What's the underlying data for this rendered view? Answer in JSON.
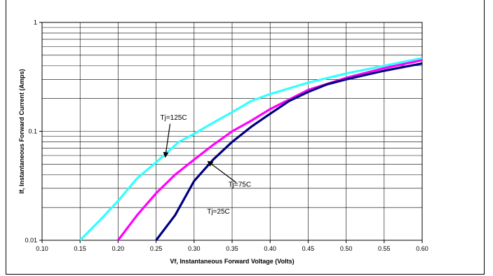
{
  "chart_data": {
    "type": "line",
    "xlabel": "Vf, Instantaneous Forward  Voltage (Volts)",
    "ylabel": "If, Instantaneous Forward Current (Amps)",
    "xlim": [
      0.1,
      0.6
    ],
    "ylim": [
      0.01,
      1
    ],
    "yscale": "log",
    "grid": true,
    "x_ticks": [
      "0.10",
      "0.15",
      "0.20",
      "0.25",
      "0.30",
      "0.35",
      "0.40",
      "0.45",
      "0.50",
      "0.55",
      "0.60"
    ],
    "y_ticks": [
      "0.01",
      "0.1",
      "1"
    ],
    "series": [
      {
        "name": "Tj=125C",
        "color": "#33ffff",
        "points": [
          [
            0.15,
            0.01
          ],
          [
            0.175,
            0.015
          ],
          [
            0.2,
            0.023
          ],
          [
            0.225,
            0.037
          ],
          [
            0.25,
            0.052
          ],
          [
            0.28,
            0.08
          ],
          [
            0.3,
            0.095
          ],
          [
            0.325,
            0.12
          ],
          [
            0.35,
            0.15
          ],
          [
            0.375,
            0.19
          ],
          [
            0.4,
            0.22
          ],
          [
            0.45,
            0.28
          ],
          [
            0.5,
            0.34
          ],
          [
            0.55,
            0.4
          ],
          [
            0.6,
            0.47
          ]
        ]
      },
      {
        "name": "Tj=75C",
        "color": "#ff00ff",
        "points": [
          [
            0.2,
            0.01
          ],
          [
            0.225,
            0.017
          ],
          [
            0.25,
            0.027
          ],
          [
            0.275,
            0.04
          ],
          [
            0.3,
            0.055
          ],
          [
            0.325,
            0.075
          ],
          [
            0.35,
            0.1
          ],
          [
            0.375,
            0.125
          ],
          [
            0.4,
            0.16
          ],
          [
            0.45,
            0.24
          ],
          [
            0.5,
            0.31
          ],
          [
            0.55,
            0.38
          ],
          [
            0.6,
            0.45
          ]
        ]
      },
      {
        "name": "Tj=25C",
        "color": "#000080",
        "points": [
          [
            0.25,
            0.01
          ],
          [
            0.275,
            0.017
          ],
          [
            0.3,
            0.035
          ],
          [
            0.325,
            0.055
          ],
          [
            0.35,
            0.08
          ],
          [
            0.375,
            0.11
          ],
          [
            0.4,
            0.145
          ],
          [
            0.425,
            0.19
          ],
          [
            0.45,
            0.23
          ],
          [
            0.475,
            0.27
          ],
          [
            0.5,
            0.3
          ],
          [
            0.55,
            0.36
          ],
          [
            0.6,
            0.42
          ]
        ]
      }
    ],
    "annotations": [
      {
        "text": "Tj=125C",
        "series": "Tj=125C",
        "label_at": [
          0.273,
          0.128
        ],
        "arrow_to": [
          0.262,
          0.058
        ]
      },
      {
        "text": "Tj=75C",
        "series": "Tj=75C",
        "label_at": [
          0.36,
          0.031
        ],
        "arrow_to": [
          0.318,
          0.053
        ]
      },
      {
        "text": "Tj=25C",
        "series": "Tj=25C",
        "label_at": [
          0.332,
          0.0175
        ],
        "arrow_to": null
      }
    ]
  }
}
